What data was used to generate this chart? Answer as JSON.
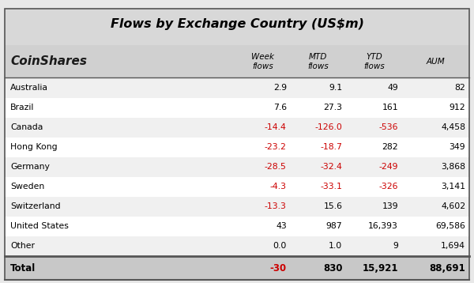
{
  "title": "Flows by Exchange Country (US$m)",
  "logo_text": "CoinShares",
  "col_headers": [
    "",
    "Week\nflows",
    "MTD\nflows",
    "YTD\nflows",
    "AUM"
  ],
  "rows": [
    [
      "Australia",
      "2.9",
      "9.1",
      "49",
      "82"
    ],
    [
      "Brazil",
      "7.6",
      "27.3",
      "161",
      "912"
    ],
    [
      "Canada",
      "-14.4",
      "-126.0",
      "-536",
      "4,458"
    ],
    [
      "Hong Kong",
      "-23.2",
      "-18.7",
      "282",
      "349"
    ],
    [
      "Germany",
      "-28.5",
      "-32.4",
      "-249",
      "3,868"
    ],
    [
      "Sweden",
      "-4.3",
      "-33.1",
      "-326",
      "3,141"
    ],
    [
      "Switzerland",
      "-13.3",
      "15.6",
      "139",
      "4,602"
    ],
    [
      "United States",
      "43",
      "987",
      "16,393",
      "69,586"
    ],
    [
      "Other",
      "0.0",
      "1.0",
      "9",
      "1,694"
    ]
  ],
  "total_row": [
    "Total",
    "-30",
    "830",
    "15,921",
    "88,691"
  ],
  "negative_color": "#cc0000",
  "positive_color": "#000000",
  "header_bg": "#d3d3d3",
  "total_row_bg": "#c8c8c8",
  "row_bg_odd": "#f0f0f0",
  "row_bg_even": "#ffffff",
  "border_color": "#555555",
  "title_color": "#000000",
  "logo_color": "#1a1a1a"
}
